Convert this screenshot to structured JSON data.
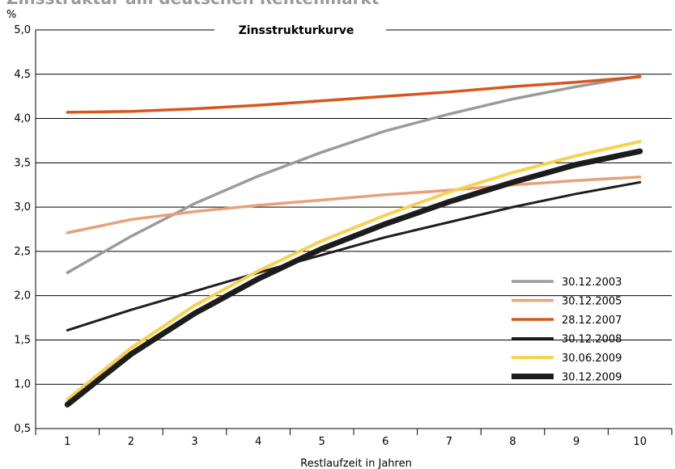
{
  "page_title": "Zinsstruktur am deutschen Rentenmarkt",
  "chart_data": {
    "type": "line",
    "title": "Zinsstrukturkurve",
    "xlabel": "Restlaufzeit in Jahren",
    "ylabel": "%",
    "x": [
      1,
      2,
      3,
      4,
      5,
      6,
      7,
      8,
      9,
      10
    ],
    "ylim": [
      0.5,
      5.0
    ],
    "yticks": [
      "0,5",
      "1,0",
      "1,5",
      "2,0",
      "2,5",
      "3,0",
      "3,5",
      "4,0",
      "4,5",
      "5,0"
    ],
    "grid": "horizontal",
    "legend_position": "bottom-right",
    "series": [
      {
        "name": "30.12.2003",
        "color": "#9b9b9b",
        "values": [
          2.26,
          2.67,
          3.04,
          3.35,
          3.62,
          3.86,
          4.05,
          4.22,
          4.36,
          4.48
        ]
      },
      {
        "name": "30.12.2005",
        "color": "#e9a07a",
        "values": [
          2.71,
          2.86,
          2.95,
          3.02,
          3.08,
          3.14,
          3.19,
          3.25,
          3.3,
          3.34
        ]
      },
      {
        "name": "28.12.2007",
        "color": "#d8561c",
        "values": [
          4.07,
          4.08,
          4.11,
          4.15,
          4.2,
          4.25,
          4.3,
          4.36,
          4.41,
          4.47
        ]
      },
      {
        "name": "30.12.2008",
        "color": "#1e1e1e",
        "values": [
          1.61,
          1.84,
          2.05,
          2.26,
          2.46,
          2.66,
          2.83,
          3.0,
          3.15,
          3.28
        ]
      },
      {
        "name": "30.06.2009",
        "color": "#f8d14e",
        "values": [
          0.83,
          1.41,
          1.89,
          2.28,
          2.62,
          2.91,
          3.17,
          3.39,
          3.58,
          3.74
        ]
      },
      {
        "name": "30.12.2009",
        "color": "#1c1c1c",
        "values": [
          0.77,
          1.34,
          1.8,
          2.19,
          2.53,
          2.81,
          3.06,
          3.28,
          3.48,
          3.63
        ]
      }
    ]
  }
}
